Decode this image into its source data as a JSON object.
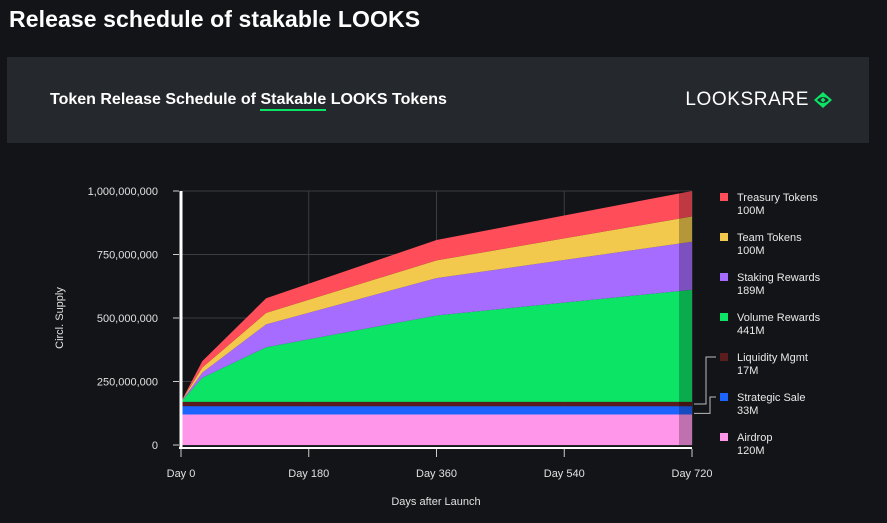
{
  "page": {
    "title": "Release schedule of stakable LOOKS"
  },
  "banner": {
    "title_pre": "Token Release Schedule of ",
    "title_hl": "Stakable",
    "title_post": " LOOKS Tokens",
    "logo_text": "LOOKSRARE",
    "logo_icon": "eye-diamond-icon",
    "accent": "#0ce466"
  },
  "chart_data": {
    "type": "area",
    "stacked": true,
    "xlabel": "Days after Launch",
    "ylabel": "Circl. Supply",
    "x_ticks": [
      {
        "value": 0,
        "label": "Day 0"
      },
      {
        "value": 180,
        "label": "Day 180"
      },
      {
        "value": 360,
        "label": "Day 360"
      },
      {
        "value": 540,
        "label": "Day 540"
      },
      {
        "value": 720,
        "label": "Day 720"
      }
    ],
    "y_ticks": [
      {
        "value": 0,
        "label": "0"
      },
      {
        "value": 250000000,
        "label": "250,000,000"
      },
      {
        "value": 500000000,
        "label": "500,000,000"
      },
      {
        "value": 750000000,
        "label": "750,000,000"
      },
      {
        "value": 1000000000,
        "label": "1,000,000,000"
      }
    ],
    "xlim": [
      0,
      720
    ],
    "ylim": [
      0,
      1000000000
    ],
    "grid": true,
    "legend_position": "right",
    "x": [
      0,
      30,
      120,
      360,
      720
    ],
    "series": [
      {
        "name": "Airdrop",
        "amount": "120M",
        "color": "#ff96ea",
        "values": [
          120000000,
          120000000,
          120000000,
          120000000,
          120000000
        ]
      },
      {
        "name": "Strategic Sale",
        "amount": "33M",
        "color": "#1d64ff",
        "values": [
          33000000,
          33000000,
          33000000,
          33000000,
          33000000
        ]
      },
      {
        "name": "Liquidity Mgmt",
        "amount": "17M",
        "color": "#5a1c1c",
        "values": [
          17000000,
          17000000,
          17000000,
          17000000,
          17000000
        ]
      },
      {
        "name": "Volume Rewards",
        "amount": "441M",
        "color": "#0ce466",
        "values": [
          0,
          95000000,
          215000000,
          340000000,
          441000000
        ]
      },
      {
        "name": "Staking Rewards",
        "amount": "189M",
        "color": "#a66bff",
        "values": [
          0,
          20000000,
          90000000,
          147000000,
          189000000
        ]
      },
      {
        "name": "Team Tokens",
        "amount": "100M",
        "color": "#f2c94c",
        "values": [
          0,
          20000000,
          45000000,
          70000000,
          100000000
        ]
      },
      {
        "name": "Treasury Tokens",
        "amount": "100M",
        "color": "#ff4d5a",
        "values": [
          0,
          25000000,
          58000000,
          80000000,
          100000000
        ]
      }
    ]
  }
}
